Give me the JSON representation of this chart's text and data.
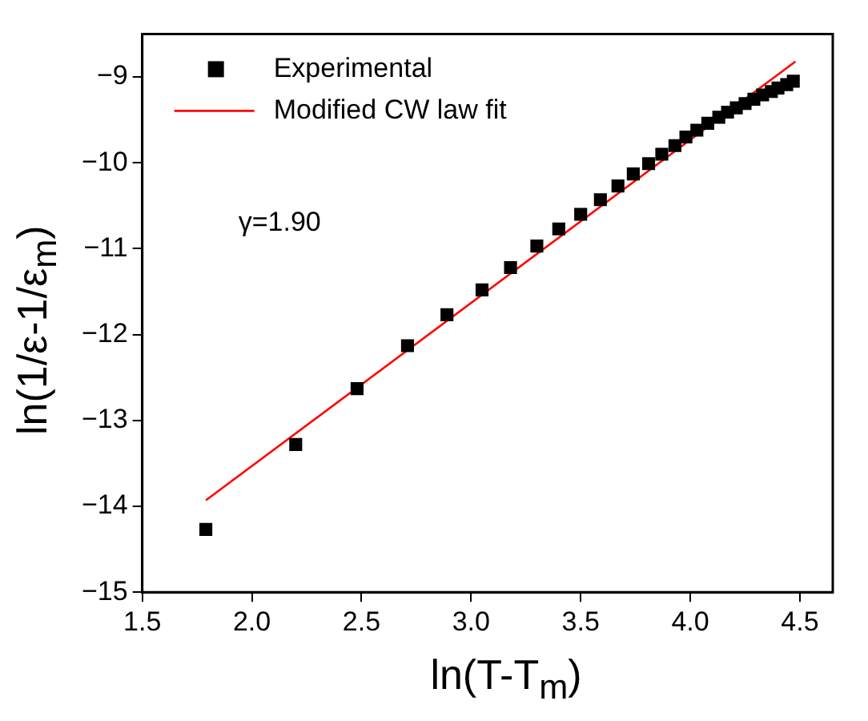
{
  "chart_data": {
    "type": "scatter",
    "xlabel": "ln(T-T$_{m}$)",
    "ylabel": "ln(1/ε-1/ε$_{m}$)",
    "annotations": [
      "γ=1.90"
    ],
    "xlim": [
      1.5,
      4.65
    ],
    "xticks": [
      1.5,
      {
        "value": 2,
        "label": "2.0"
      },
      2.5,
      {
        "value": 3,
        "label": "3.0"
      },
      3.5,
      {
        "value": 4,
        "label": "4.0"
      },
      4.5
    ],
    "ylim": [
      -15,
      -8.5
    ],
    "yticks": [
      -15,
      -14,
      -13,
      -12,
      -11,
      -10,
      -9
    ],
    "grid": false,
    "legend": "top left",
    "series": [
      {
        "name": "Experimental",
        "marker": "square",
        "color": "#000000",
        "x": [
          1.79,
          2.2,
          2.48,
          2.71,
          2.89,
          3.05,
          3.18,
          3.3,
          3.4,
          3.5,
          3.59,
          3.67,
          3.74,
          3.81,
          3.87,
          3.93,
          3.98,
          4.03,
          4.08,
          4.13,
          4.17,
          4.21,
          4.25,
          4.29,
          4.33,
          4.37,
          4.4,
          4.44,
          4.47
        ],
        "values": [
          -14.27,
          -13.28,
          -12.63,
          -12.13,
          -11.77,
          -11.48,
          -11.22,
          -10.97,
          -10.77,
          -10.6,
          -10.43,
          -10.27,
          -10.13,
          -10.01,
          -9.9,
          -9.8,
          -9.7,
          -9.62,
          -9.54,
          -9.47,
          -9.41,
          -9.36,
          -9.31,
          -9.26,
          -9.21,
          -9.17,
          -9.13,
          -9.09,
          -9.05
        ]
      },
      {
        "name": "Modified CW law fit",
        "type": "line",
        "color": "#ff0000",
        "x": [
          1.79,
          4.48
        ],
        "values": [
          -13.93,
          -8.82
        ]
      }
    ]
  }
}
